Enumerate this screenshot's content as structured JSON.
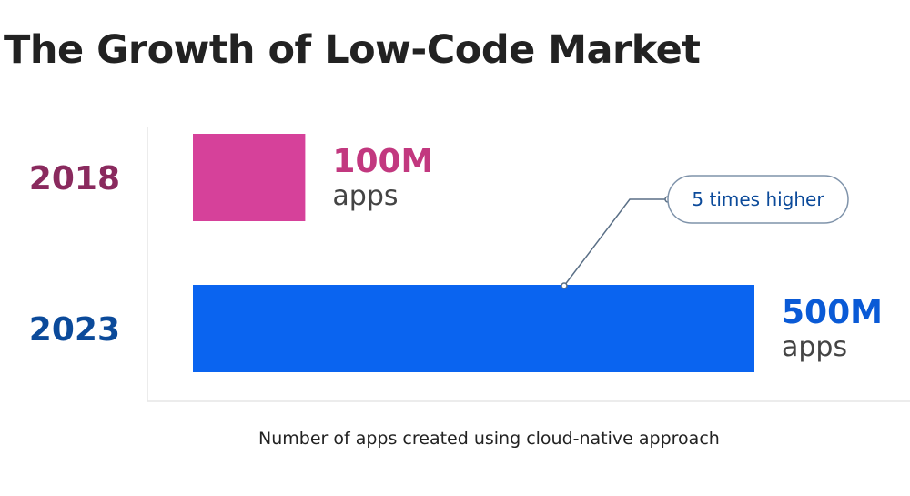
{
  "page": {
    "title": "The Growth of Low-Code Market"
  },
  "chart_data": {
    "type": "bar",
    "orientation": "horizontal",
    "title": "The Growth of Low-Code Market",
    "xlabel": "Number of apps created using cloud-native approach",
    "ylabel": "",
    "categories": [
      "2018",
      "2023"
    ],
    "values": [
      100,
      500
    ],
    "unit": "M",
    "value_labels": [
      {
        "value": "100M",
        "unit": "apps"
      },
      {
        "value": "500M",
        "unit": "apps"
      }
    ],
    "colors": [
      "#d6419a",
      "#0a64f0"
    ],
    "category_colors": [
      "#8a2a5e",
      "#0b4a9a"
    ],
    "label_colors": [
      "#c2387f",
      "#0a5ad6"
    ],
    "xlim": [
      0,
      500
    ],
    "grid": false,
    "annotation": {
      "text": "5 times higher",
      "target_category": "2023",
      "color": "#0b4a9a"
    }
  }
}
